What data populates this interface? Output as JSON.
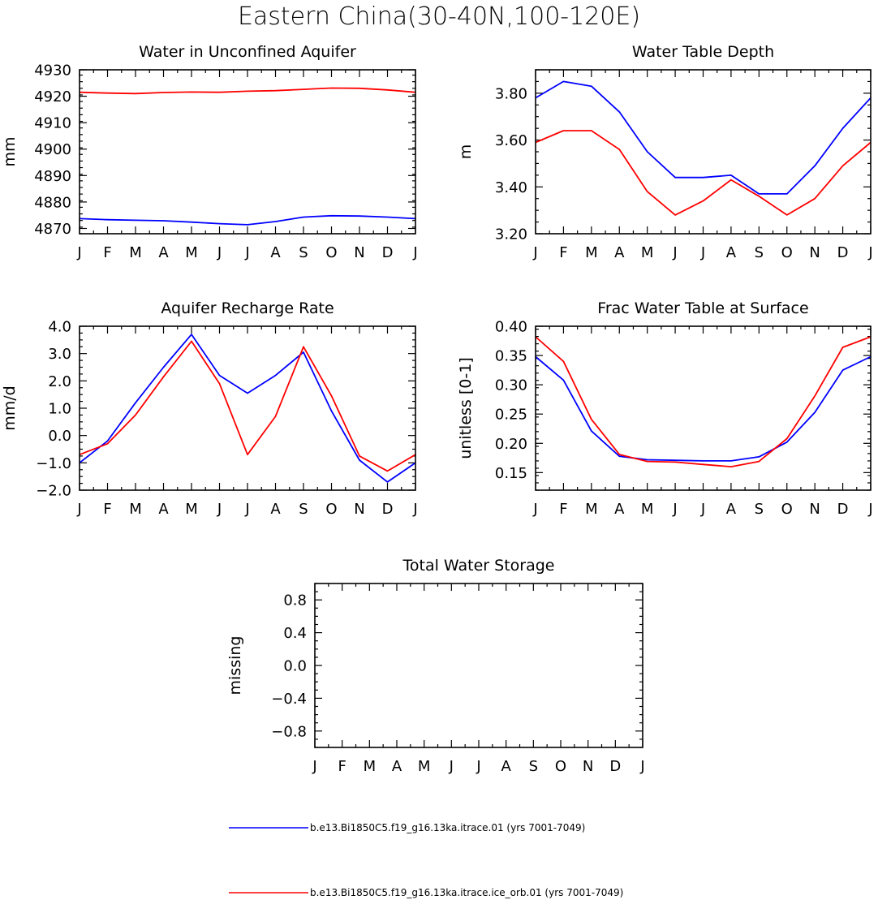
{
  "figure": {
    "title": "Eastern China(30-40N,100-120E)"
  },
  "colors": {
    "series_1": "#0000ff",
    "series_2": "#ff0000",
    "frame": "#000000",
    "background": "#ffffff"
  },
  "legend": [
    {
      "label": "b.e13.Bi1850C5.f19_g16.13ka.itrace.01 (yrs 7001-7049)",
      "color": "#0000ff"
    },
    {
      "label": "b.e13.Bi1850C5.f19_g16.13ka.itrace.ice_orb.01 (yrs 7001-7049)",
      "color": "#ff0000"
    }
  ],
  "chart_data": [
    {
      "type": "line",
      "title": "Water in Unconfined Aquifer",
      "ylabel": "mm",
      "categories": [
        "J",
        "F",
        "M",
        "A",
        "M",
        "J",
        "J",
        "A",
        "S",
        "O",
        "N",
        "D",
        "J"
      ],
      "ylim": [
        4868,
        4930
      ],
      "yticks": [
        4870,
        4880,
        4890,
        4900,
        4910,
        4920,
        4930
      ],
      "ytick_labels": [
        "4870",
        "4880",
        "4890",
        "4900",
        "4910",
        "4920",
        "4930"
      ],
      "series": [
        {
          "color": "#0000ff",
          "values": [
            4873.7,
            4873.3,
            4873.1,
            4872.9,
            4872.4,
            4871.8,
            4871.4,
            4872.6,
            4874.3,
            4874.8,
            4874.7,
            4874.3,
            4873.7
          ]
        },
        {
          "color": "#ff0000",
          "values": [
            4921.5,
            4921.2,
            4921.0,
            4921.4,
            4921.6,
            4921.5,
            4921.9,
            4922.1,
            4922.6,
            4923.1,
            4923.0,
            4922.4,
            4921.5
          ]
        }
      ]
    },
    {
      "type": "line",
      "title": "Water Table Depth",
      "ylabel": "m",
      "categories": [
        "J",
        "F",
        "M",
        "A",
        "M",
        "J",
        "J",
        "A",
        "S",
        "O",
        "N",
        "D",
        "J"
      ],
      "ylim": [
        3.2,
        3.9
      ],
      "yticks": [
        3.2,
        3.4,
        3.6,
        3.8
      ],
      "ytick_labels": [
        "3.20",
        "3.40",
        "3.60",
        "3.80"
      ],
      "series": [
        {
          "color": "#0000ff",
          "values": [
            3.78,
            3.85,
            3.83,
            3.72,
            3.55,
            3.44,
            3.44,
            3.45,
            3.37,
            3.37,
            3.49,
            3.65,
            3.78
          ]
        },
        {
          "color": "#ff0000",
          "values": [
            3.59,
            3.64,
            3.64,
            3.56,
            3.38,
            3.28,
            3.34,
            3.43,
            3.36,
            3.28,
            3.35,
            3.49,
            3.59
          ]
        }
      ]
    },
    {
      "type": "line",
      "title": "Aquifer Recharge Rate",
      "ylabel": "mm/d",
      "categories": [
        "J",
        "F",
        "M",
        "A",
        "M",
        "J",
        "J",
        "A",
        "S",
        "O",
        "N",
        "D",
        "J"
      ],
      "ylim": [
        -2.0,
        4.0
      ],
      "yticks": [
        -2,
        -1,
        0,
        1,
        2,
        3,
        4
      ],
      "ytick_labels": [
        "−2.0",
        "−1.0",
        "0.0",
        "1.0",
        "2.0",
        "3.0",
        "4.0"
      ],
      "series": [
        {
          "color": "#0000ff",
          "values": [
            -1.0,
            -0.2,
            1.2,
            2.5,
            3.7,
            2.2,
            1.55,
            2.2,
            3.05,
            0.9,
            -0.9,
            -1.7,
            -1.0
          ]
        },
        {
          "color": "#ff0000",
          "values": [
            -0.7,
            -0.3,
            0.75,
            2.15,
            3.45,
            1.9,
            -0.7,
            0.7,
            3.25,
            1.45,
            -0.75,
            -1.3,
            -0.7
          ]
        }
      ]
    },
    {
      "type": "line",
      "title": "Frac Water Table at Surface",
      "ylabel": "unitless [0-1]",
      "categories": [
        "J",
        "F",
        "M",
        "A",
        "M",
        "J",
        "J",
        "A",
        "S",
        "O",
        "N",
        "D",
        "J"
      ],
      "ylim": [
        0.12,
        0.4
      ],
      "yticks": [
        0.15,
        0.2,
        0.25,
        0.3,
        0.35,
        0.4
      ],
      "ytick_labels": [
        "0.15",
        "0.20",
        "0.25",
        "0.30",
        "0.35",
        "0.40"
      ],
      "series": [
        {
          "color": "#0000ff",
          "values": [
            0.348,
            0.308,
            0.221,
            0.178,
            0.172,
            0.171,
            0.17,
            0.17,
            0.177,
            0.202,
            0.253,
            0.325,
            0.348
          ]
        },
        {
          "color": "#ff0000",
          "values": [
            0.382,
            0.34,
            0.241,
            0.181,
            0.169,
            0.168,
            0.164,
            0.16,
            0.169,
            0.208,
            0.281,
            0.364,
            0.382
          ]
        }
      ]
    },
    {
      "type": "line",
      "title": "Total Water Storage",
      "ylabel": "missing",
      "categories": [
        "J",
        "F",
        "M",
        "A",
        "M",
        "J",
        "J",
        "A",
        "S",
        "O",
        "N",
        "D",
        "J"
      ],
      "ylim": [
        -1.0,
        1.0
      ],
      "yticks": [
        -0.8,
        -0.4,
        0.0,
        0.4,
        0.8
      ],
      "ytick_labels": [
        "−0.8",
        "−0.4",
        "0.0",
        "0.4",
        "0.8"
      ],
      "series": []
    }
  ]
}
